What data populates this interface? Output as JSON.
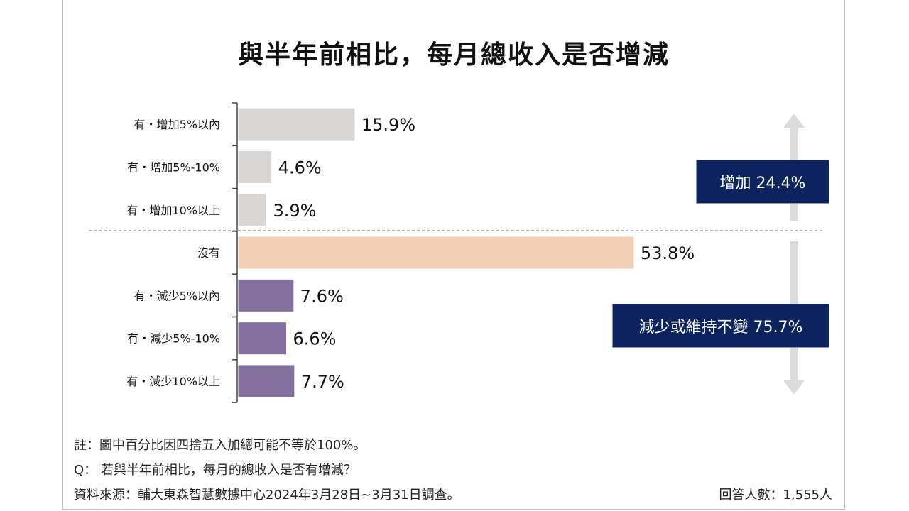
{
  "chart_data": {
    "type": "bar",
    "orientation": "horizontal",
    "title": "與半年前相比，每月總收入是否增減",
    "categories": [
      "有・增加5%以內",
      "有・增加5%-10%",
      "有・增加10%以上",
      "沒有",
      "有・減少5%以內",
      "有・減少5%-10%",
      "有・減少10%以上"
    ],
    "values": [
      15.9,
      4.6,
      3.9,
      53.8,
      7.6,
      6.6,
      7.7
    ],
    "value_labels": [
      "15.9%",
      "4.6%",
      "3.9%",
      "53.8%",
      "7.6%",
      "6.6%",
      "7.7%"
    ],
    "groups": [
      "increase",
      "increase",
      "increase",
      "none",
      "decrease",
      "decrease",
      "decrease"
    ],
    "colors": {
      "increase": "#d9d6d6",
      "none": "#f3cfb6",
      "decrease": "#84709f",
      "summary_box": "#0d2360",
      "arrow": "#dcdcdc"
    },
    "xlim": [
      0,
      60
    ],
    "summaries": {
      "increase": "增加 24.4%",
      "decrease": "減少或維持不變 75.7%"
    }
  },
  "notes": {
    "note": "註：圖中百分比因四捨五入加總可能不等於100%。",
    "question": "Q： 若與半年前相比，每月的總收入是否有增減？",
    "source": "資料來源：輔大東森智慧數據中心2024年3月28日~3月31日調查。",
    "respondents": "回答人數：1,555人"
  }
}
